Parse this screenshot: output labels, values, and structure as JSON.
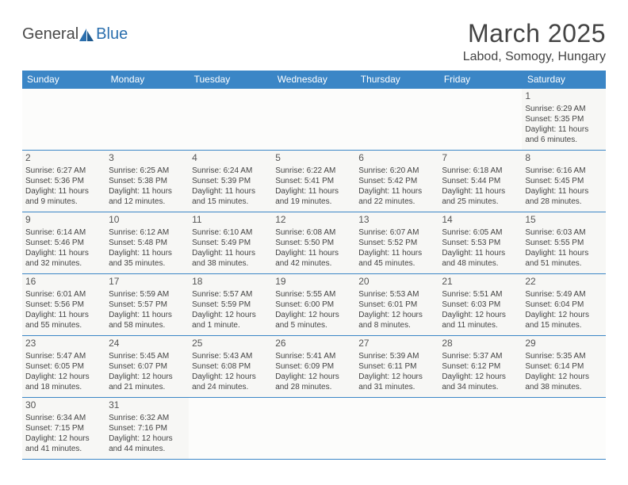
{
  "logo": {
    "text1": "General",
    "text2": "Blue"
  },
  "title": "March 2025",
  "location": "Labod, Somogy, Hungary",
  "colors": {
    "header_bg": "#3b86c6",
    "header_text": "#ffffff",
    "border": "#3b86c6",
    "cell_bg": "#f7f7f5",
    "text": "#444444",
    "logo_gray": "#4a4a4a",
    "logo_blue": "#2b6fae"
  },
  "weekdays": [
    "Sunday",
    "Monday",
    "Tuesday",
    "Wednesday",
    "Thursday",
    "Friday",
    "Saturday"
  ],
  "weeks": [
    [
      null,
      null,
      null,
      null,
      null,
      null,
      {
        "n": "1",
        "sr": "Sunrise: 6:29 AM",
        "ss": "Sunset: 5:35 PM",
        "dl": "Daylight: 11 hours and 6 minutes."
      }
    ],
    [
      {
        "n": "2",
        "sr": "Sunrise: 6:27 AM",
        "ss": "Sunset: 5:36 PM",
        "dl": "Daylight: 11 hours and 9 minutes."
      },
      {
        "n": "3",
        "sr": "Sunrise: 6:25 AM",
        "ss": "Sunset: 5:38 PM",
        "dl": "Daylight: 11 hours and 12 minutes."
      },
      {
        "n": "4",
        "sr": "Sunrise: 6:24 AM",
        "ss": "Sunset: 5:39 PM",
        "dl": "Daylight: 11 hours and 15 minutes."
      },
      {
        "n": "5",
        "sr": "Sunrise: 6:22 AM",
        "ss": "Sunset: 5:41 PM",
        "dl": "Daylight: 11 hours and 19 minutes."
      },
      {
        "n": "6",
        "sr": "Sunrise: 6:20 AM",
        "ss": "Sunset: 5:42 PM",
        "dl": "Daylight: 11 hours and 22 minutes."
      },
      {
        "n": "7",
        "sr": "Sunrise: 6:18 AM",
        "ss": "Sunset: 5:44 PM",
        "dl": "Daylight: 11 hours and 25 minutes."
      },
      {
        "n": "8",
        "sr": "Sunrise: 6:16 AM",
        "ss": "Sunset: 5:45 PM",
        "dl": "Daylight: 11 hours and 28 minutes."
      }
    ],
    [
      {
        "n": "9",
        "sr": "Sunrise: 6:14 AM",
        "ss": "Sunset: 5:46 PM",
        "dl": "Daylight: 11 hours and 32 minutes."
      },
      {
        "n": "10",
        "sr": "Sunrise: 6:12 AM",
        "ss": "Sunset: 5:48 PM",
        "dl": "Daylight: 11 hours and 35 minutes."
      },
      {
        "n": "11",
        "sr": "Sunrise: 6:10 AM",
        "ss": "Sunset: 5:49 PM",
        "dl": "Daylight: 11 hours and 38 minutes."
      },
      {
        "n": "12",
        "sr": "Sunrise: 6:08 AM",
        "ss": "Sunset: 5:50 PM",
        "dl": "Daylight: 11 hours and 42 minutes."
      },
      {
        "n": "13",
        "sr": "Sunrise: 6:07 AM",
        "ss": "Sunset: 5:52 PM",
        "dl": "Daylight: 11 hours and 45 minutes."
      },
      {
        "n": "14",
        "sr": "Sunrise: 6:05 AM",
        "ss": "Sunset: 5:53 PM",
        "dl": "Daylight: 11 hours and 48 minutes."
      },
      {
        "n": "15",
        "sr": "Sunrise: 6:03 AM",
        "ss": "Sunset: 5:55 PM",
        "dl": "Daylight: 11 hours and 51 minutes."
      }
    ],
    [
      {
        "n": "16",
        "sr": "Sunrise: 6:01 AM",
        "ss": "Sunset: 5:56 PM",
        "dl": "Daylight: 11 hours and 55 minutes."
      },
      {
        "n": "17",
        "sr": "Sunrise: 5:59 AM",
        "ss": "Sunset: 5:57 PM",
        "dl": "Daylight: 11 hours and 58 minutes."
      },
      {
        "n": "18",
        "sr": "Sunrise: 5:57 AM",
        "ss": "Sunset: 5:59 PM",
        "dl": "Daylight: 12 hours and 1 minute."
      },
      {
        "n": "19",
        "sr": "Sunrise: 5:55 AM",
        "ss": "Sunset: 6:00 PM",
        "dl": "Daylight: 12 hours and 5 minutes."
      },
      {
        "n": "20",
        "sr": "Sunrise: 5:53 AM",
        "ss": "Sunset: 6:01 PM",
        "dl": "Daylight: 12 hours and 8 minutes."
      },
      {
        "n": "21",
        "sr": "Sunrise: 5:51 AM",
        "ss": "Sunset: 6:03 PM",
        "dl": "Daylight: 12 hours and 11 minutes."
      },
      {
        "n": "22",
        "sr": "Sunrise: 5:49 AM",
        "ss": "Sunset: 6:04 PM",
        "dl": "Daylight: 12 hours and 15 minutes."
      }
    ],
    [
      {
        "n": "23",
        "sr": "Sunrise: 5:47 AM",
        "ss": "Sunset: 6:05 PM",
        "dl": "Daylight: 12 hours and 18 minutes."
      },
      {
        "n": "24",
        "sr": "Sunrise: 5:45 AM",
        "ss": "Sunset: 6:07 PM",
        "dl": "Daylight: 12 hours and 21 minutes."
      },
      {
        "n": "25",
        "sr": "Sunrise: 5:43 AM",
        "ss": "Sunset: 6:08 PM",
        "dl": "Daylight: 12 hours and 24 minutes."
      },
      {
        "n": "26",
        "sr": "Sunrise: 5:41 AM",
        "ss": "Sunset: 6:09 PM",
        "dl": "Daylight: 12 hours and 28 minutes."
      },
      {
        "n": "27",
        "sr": "Sunrise: 5:39 AM",
        "ss": "Sunset: 6:11 PM",
        "dl": "Daylight: 12 hours and 31 minutes."
      },
      {
        "n": "28",
        "sr": "Sunrise: 5:37 AM",
        "ss": "Sunset: 6:12 PM",
        "dl": "Daylight: 12 hours and 34 minutes."
      },
      {
        "n": "29",
        "sr": "Sunrise: 5:35 AM",
        "ss": "Sunset: 6:14 PM",
        "dl": "Daylight: 12 hours and 38 minutes."
      }
    ],
    [
      {
        "n": "30",
        "sr": "Sunrise: 6:34 AM",
        "ss": "Sunset: 7:15 PM",
        "dl": "Daylight: 12 hours and 41 minutes."
      },
      {
        "n": "31",
        "sr": "Sunrise: 6:32 AM",
        "ss": "Sunset: 7:16 PM",
        "dl": "Daylight: 12 hours and 44 minutes."
      },
      null,
      null,
      null,
      null,
      null
    ]
  ]
}
